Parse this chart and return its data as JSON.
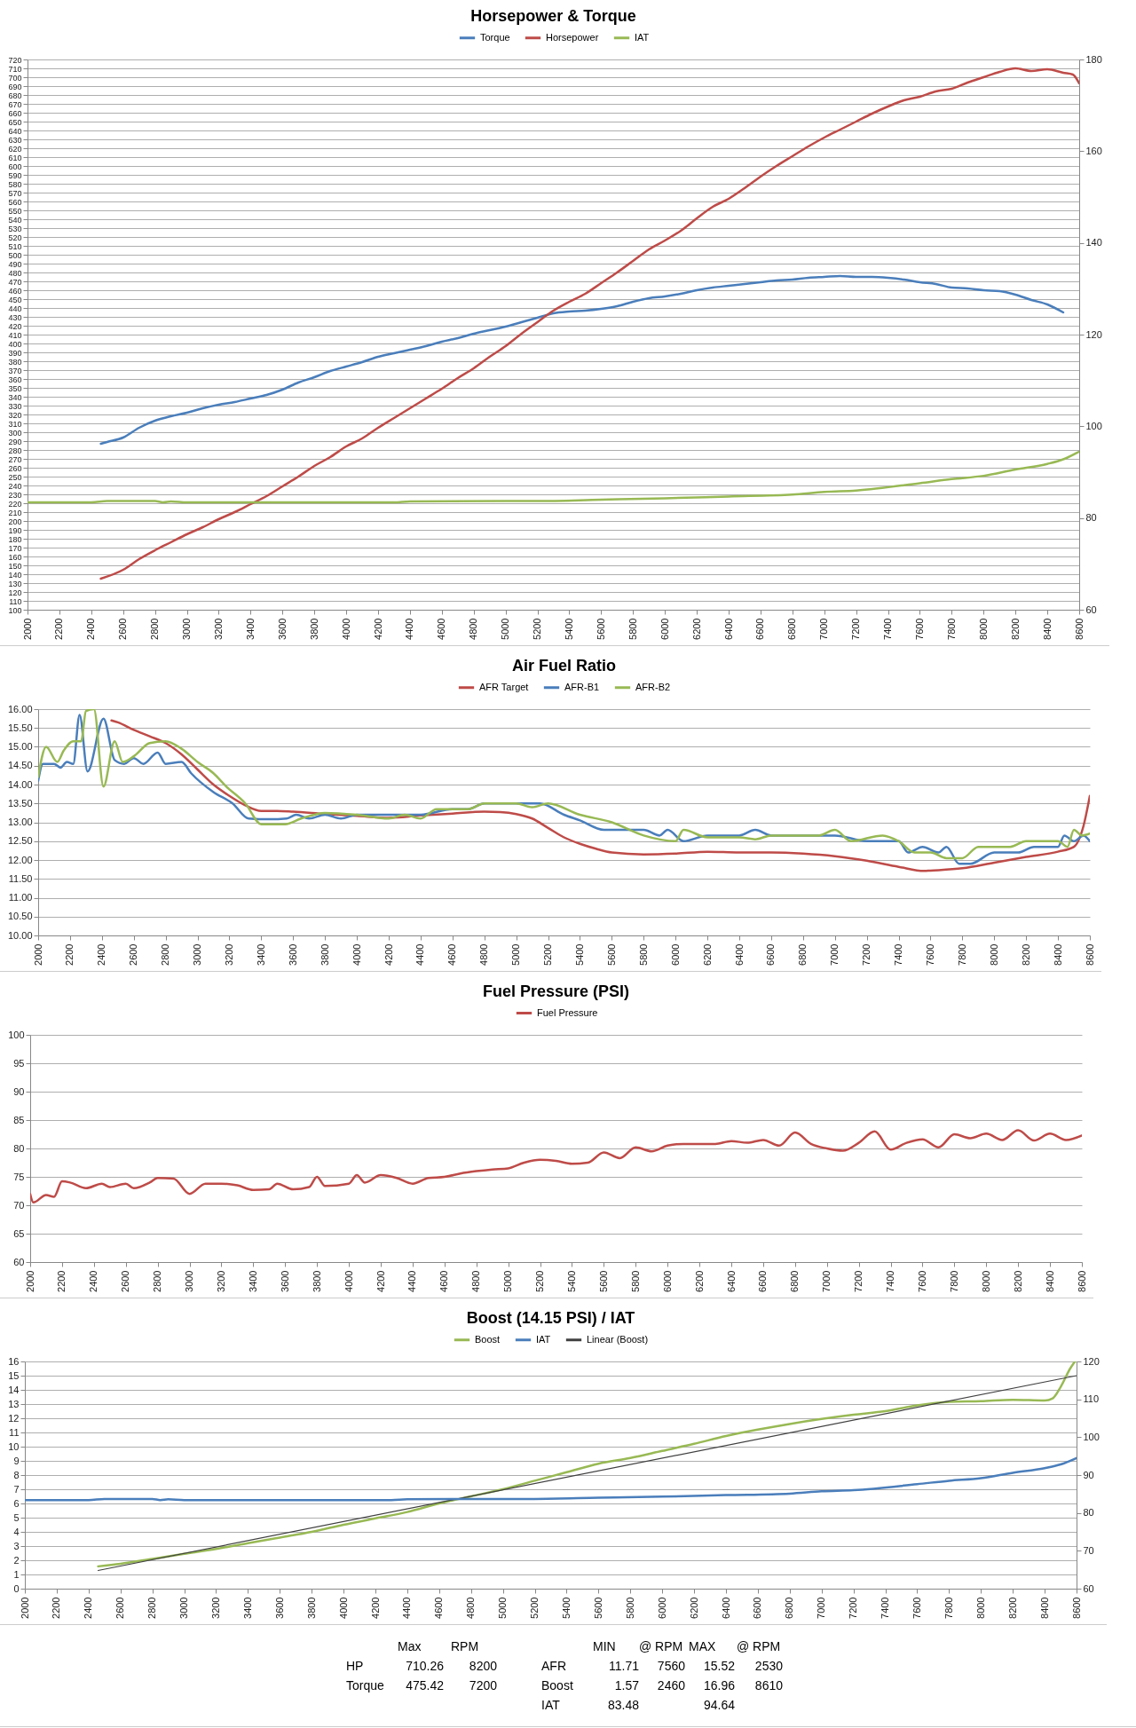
{
  "chart_data": [
    {
      "type": "line",
      "title": "Horsepower & Torque",
      "legend": "top",
      "grid": "y",
      "xlim": [
        2000,
        8600
      ],
      "xticks": [
        2000,
        2200,
        2400,
        2600,
        2800,
        3000,
        3200,
        3400,
        3600,
        3800,
        4000,
        4200,
        4400,
        4600,
        4800,
        5000,
        5200,
        5400,
        5600,
        5800,
        6000,
        6200,
        6400,
        6600,
        6800,
        7000,
        7200,
        7400,
        7600,
        7800,
        8000,
        8200,
        8400,
        8600
      ],
      "ylim": [
        100,
        720
      ],
      "yticks": [
        100,
        110,
        120,
        130,
        140,
        150,
        160,
        170,
        180,
        190,
        200,
        210,
        220,
        230,
        240,
        250,
        260,
        270,
        280,
        290,
        300,
        310,
        320,
        330,
        340,
        350,
        360,
        370,
        380,
        390,
        400,
        410,
        420,
        430,
        440,
        450,
        460,
        470,
        480,
        490,
        500,
        510,
        520,
        530,
        540,
        550,
        560,
        570,
        580,
        590,
        600,
        610,
        620,
        630,
        640,
        650,
        660,
        670,
        680,
        690,
        700,
        710,
        720
      ],
      "y2lim": [
        60,
        180
      ],
      "y2ticks": [
        60,
        80,
        100,
        120,
        140,
        160,
        180
      ],
      "series": [
        {
          "name": "Torque",
          "color": "#4a7ebb",
          "x": [
            2460,
            2500,
            2600,
            2700,
            2800,
            2900,
            3000,
            3100,
            3200,
            3300,
            3400,
            3500,
            3600,
            3700,
            3800,
            3900,
            4000,
            4100,
            4200,
            4300,
            4400,
            4500,
            4600,
            4700,
            4800,
            4900,
            5000,
            5100,
            5200,
            5300,
            5400,
            5500,
            5600,
            5700,
            5800,
            5900,
            6000,
            6100,
            6200,
            6300,
            6400,
            6500,
            6600,
            6700,
            6800,
            6900,
            7000,
            7100,
            7200,
            7300,
            7400,
            7500,
            7600,
            7700,
            7800,
            7900,
            8000,
            8100,
            8200,
            8300,
            8400,
            8500
          ],
          "values": [
            287,
            289,
            294,
            305,
            313,
            318,
            322,
            327,
            331,
            334,
            338,
            342,
            348,
            356,
            362,
            369,
            374,
            379,
            385,
            389,
            393,
            397,
            402,
            406,
            411,
            415,
            419,
            424,
            429,
            434,
            436,
            437,
            439,
            442,
            447,
            451,
            453,
            456,
            460,
            463,
            465,
            467,
            469,
            471,
            472,
            474,
            475,
            476,
            475,
            475,
            474,
            472,
            469,
            467,
            463,
            462,
            460,
            459,
            455,
            449,
            444,
            435
          ]
        },
        {
          "name": "Horsepower",
          "color": "#be4b48",
          "x": [
            2460,
            2600,
            2700,
            2800,
            2900,
            3000,
            3100,
            3200,
            3300,
            3400,
            3500,
            3600,
            3700,
            3800,
            3900,
            4000,
            4100,
            4200,
            4300,
            4400,
            4500,
            4600,
            4700,
            4800,
            4900,
            5000,
            5100,
            5200,
            5300,
            5400,
            5500,
            5600,
            5700,
            5800,
            5900,
            6000,
            6100,
            6200,
            6300,
            6400,
            6500,
            6600,
            6700,
            6800,
            6900,
            7000,
            7100,
            7200,
            7300,
            7400,
            7500,
            7600,
            7700,
            7800,
            7900,
            8000,
            8100,
            8200,
            8300,
            8400,
            8500,
            8560,
            8600
          ],
          "values": [
            135,
            145,
            157,
            167,
            176,
            185,
            193,
            202,
            210,
            219,
            228,
            239,
            250,
            262,
            272,
            284,
            293,
            305,
            316,
            327,
            338,
            349,
            361,
            372,
            385,
            397,
            411,
            424,
            437,
            447,
            456,
            468,
            480,
            493,
            506,
            516,
            527,
            541,
            554,
            563,
            575,
            588,
            600,
            611,
            622,
            632,
            641,
            650,
            659,
            667,
            674,
            678,
            684,
            687,
            694,
            700,
            706,
            710,
            707,
            709,
            705,
            703,
            693
          ]
        },
        {
          "name": "IAT",
          "color": "#98b954",
          "axis": "y2",
          "x": [
            2000,
            2400,
            2500,
            2800,
            2850,
            2900,
            3000,
            4300,
            4400,
            5000,
            5200,
            5600,
            6000,
            6400,
            6800,
            7000,
            7200,
            7600,
            7800,
            8000,
            8200,
            8400,
            8500,
            8600
          ],
          "values": [
            83.4,
            83.4,
            83.7,
            83.7,
            83.4,
            83.6,
            83.4,
            83.4,
            83.6,
            83.7,
            83.7,
            84.0,
            84.3,
            84.7,
            85.1,
            85.7,
            86.0,
            87.6,
            88.5,
            89.2,
            90.6,
            91.8,
            92.8,
            94.5
          ]
        }
      ]
    },
    {
      "type": "line",
      "title": "Air Fuel Ratio",
      "legend": "top",
      "grid": "y",
      "xlim": [
        2000,
        8600
      ],
      "xticks": [
        2000,
        2200,
        2400,
        2600,
        2800,
        3000,
        3200,
        3400,
        3600,
        3800,
        4000,
        4200,
        4400,
        4600,
        4800,
        5000,
        5200,
        5400,
        5600,
        5800,
        6000,
        6200,
        6400,
        6600,
        6800,
        7000,
        7200,
        7400,
        7600,
        7800,
        8000,
        8200,
        8400,
        8600
      ],
      "ylim": [
        10,
        16
      ],
      "yticks": [
        {
          "value": 10,
          "label": "10.00"
        },
        {
          "value": 10.5,
          "label": "10.50"
        },
        {
          "value": 11,
          "label": "11.00"
        },
        {
          "value": 11.5,
          "label": "11.50"
        },
        {
          "value": 12,
          "label": "12.00"
        },
        {
          "value": 12.5,
          "label": "12.50"
        },
        {
          "value": 13,
          "label": "13.00"
        },
        {
          "value": 13.5,
          "label": "13.50"
        },
        {
          "value": 14,
          "label": "14.00"
        },
        {
          "value": 14.5,
          "label": "14.50"
        },
        {
          "value": 15,
          "label": "15.00"
        },
        {
          "value": 15.5,
          "label": "15.50"
        },
        {
          "value": 16,
          "label": "16.00"
        }
      ],
      "series": [
        {
          "name": "AFR Target",
          "color": "#be4b48",
          "x": [
            2460,
            2500,
            2600,
            2700,
            2800,
            2900,
            3000,
            3100,
            3200,
            3300,
            3400,
            3500,
            3600,
            3800,
            4000,
            4200,
            4400,
            4600,
            4800,
            4900,
            5000,
            5100,
            5200,
            5300,
            5400,
            5500,
            5600,
            5800,
            6000,
            6200,
            6400,
            6600,
            6800,
            7000,
            7200,
            7400,
            7560,
            7600,
            7800,
            8000,
            8200,
            8400,
            8500,
            8560,
            8600
          ],
          "values": [
            15.7,
            15.65,
            15.45,
            15.28,
            15.1,
            14.8,
            14.4,
            14.0,
            13.7,
            13.45,
            13.3,
            13.3,
            13.28,
            13.22,
            13.17,
            13.12,
            13.18,
            13.23,
            13.28,
            13.27,
            13.22,
            13.1,
            12.85,
            12.6,
            12.43,
            12.3,
            12.2,
            12.15,
            12.17,
            12.22,
            12.2,
            12.2,
            12.17,
            12.1,
            11.98,
            11.82,
            11.71,
            11.72,
            11.78,
            11.93,
            12.08,
            12.22,
            12.35,
            12.9,
            13.7
          ]
        },
        {
          "name": "AFR-B1",
          "color": "#4a7ebb",
          "x": [
            2000,
            2030,
            2100,
            2140,
            2180,
            2220,
            2260,
            2310,
            2410,
            2480,
            2540,
            2600,
            2660,
            2750,
            2800,
            2900,
            2960,
            3100,
            3220,
            3320,
            3450,
            3560,
            3620,
            3700,
            3800,
            3900,
            4000,
            4400,
            4600,
            4700,
            4800,
            5000,
            5150,
            5300,
            5400,
            5550,
            5800,
            5900,
            5950,
            6050,
            6200,
            6400,
            6500,
            6600,
            7000,
            7200,
            7400,
            7460,
            7550,
            7650,
            7700,
            7780,
            7850,
            8000,
            8150,
            8250,
            8400,
            8440,
            8500,
            8560,
            8600
          ],
          "values": [
            14.1,
            14.55,
            14.55,
            14.45,
            14.6,
            14.55,
            15.85,
            14.35,
            15.75,
            14.65,
            14.55,
            14.7,
            14.55,
            14.85,
            14.55,
            14.6,
            14.3,
            13.8,
            13.5,
            13.1,
            13.08,
            13.1,
            13.2,
            13.1,
            13.2,
            13.1,
            13.2,
            13.2,
            13.35,
            13.35,
            13.5,
            13.5,
            13.5,
            13.2,
            13.05,
            12.8,
            12.8,
            12.65,
            12.8,
            12.5,
            12.65,
            12.65,
            12.8,
            12.65,
            12.65,
            12.5,
            12.5,
            12.2,
            12.35,
            12.2,
            12.35,
            11.9,
            11.9,
            12.2,
            12.2,
            12.35,
            12.35,
            12.65,
            12.5,
            12.65,
            12.5
          ]
        },
        {
          "name": "AFR-B2",
          "color": "#98b954",
          "x": [
            2000,
            2050,
            2120,
            2160,
            2220,
            2270,
            2300,
            2350,
            2410,
            2480,
            2530,
            2600,
            2700,
            2800,
            2900,
            3000,
            3100,
            3180,
            3300,
            3400,
            3550,
            3650,
            3800,
            4000,
            4200,
            4300,
            4400,
            4500,
            4700,
            4800,
            5000,
            5100,
            5200,
            5400,
            5600,
            5800,
            6000,
            6050,
            6200,
            6400,
            6500,
            6600,
            6900,
            7000,
            7100,
            7300,
            7400,
            7500,
            7600,
            7700,
            7800,
            7900,
            8100,
            8200,
            8400,
            8460,
            8500,
            8550,
            8600
          ],
          "values": [
            14.2,
            15.0,
            14.6,
            14.9,
            15.15,
            15.15,
            15.95,
            16.0,
            13.95,
            15.15,
            14.6,
            14.75,
            15.1,
            15.15,
            14.95,
            14.6,
            14.3,
            13.95,
            13.5,
            12.95,
            12.95,
            13.1,
            13.25,
            13.2,
            13.1,
            13.2,
            13.1,
            13.35,
            13.35,
            13.5,
            13.5,
            13.4,
            13.5,
            13.2,
            13.0,
            12.65,
            12.5,
            12.8,
            12.6,
            12.6,
            12.55,
            12.65,
            12.65,
            12.8,
            12.5,
            12.65,
            12.5,
            12.2,
            12.2,
            12.05,
            12.05,
            12.35,
            12.35,
            12.5,
            12.5,
            12.35,
            12.8,
            12.65,
            12.7
          ]
        }
      ]
    },
    {
      "type": "line",
      "title": "Fuel Pressure (PSI)",
      "legend": "top",
      "grid": "y",
      "xlim": [
        2000,
        8600
      ],
      "xticks": [
        2000,
        2200,
        2400,
        2600,
        2800,
        3000,
        3200,
        3400,
        3600,
        3800,
        4000,
        4200,
        4400,
        4600,
        4800,
        5000,
        5200,
        5400,
        5600,
        5800,
        6000,
        6200,
        6400,
        6600,
        6800,
        7000,
        7200,
        7400,
        7600,
        7800,
        8000,
        8200,
        8400,
        8600
      ],
      "ylim": [
        60,
        100
      ],
      "yticks": [
        60,
        65,
        70,
        75,
        80,
        85,
        90,
        95,
        100
      ],
      "series": [
        {
          "name": "Fuel Pressure",
          "color": "#be4b48",
          "x": [
            2000,
            2020,
            2100,
            2150,
            2200,
            2250,
            2350,
            2450,
            2500,
            2600,
            2650,
            2750,
            2800,
            2900,
            3000,
            3100,
            3200,
            3300,
            3400,
            3500,
            3550,
            3650,
            3750,
            3800,
            3850,
            4000,
            4050,
            4100,
            4200,
            4300,
            4400,
            4500,
            4600,
            4700,
            4800,
            4900,
            5000,
            5100,
            5200,
            5300,
            5400,
            5500,
            5600,
            5700,
            5800,
            5900,
            6000,
            6100,
            6300,
            6400,
            6500,
            6600,
            6700,
            6800,
            6900,
            7000,
            7100,
            7200,
            7300,
            7400,
            7500,
            7600,
            7700,
            7800,
            7900,
            8000,
            8100,
            8200,
            8300,
            8400,
            8500,
            8600
          ],
          "values": [
            72,
            70.5,
            71.8,
            71.5,
            74.2,
            74,
            73,
            73.8,
            73.2,
            73.8,
            73,
            74,
            74.8,
            74.7,
            72,
            73.8,
            73.8,
            73.5,
            72.7,
            72.8,
            73.8,
            72.8,
            73.2,
            75,
            73.4,
            73.8,
            75.3,
            74,
            75.3,
            74.8,
            73.8,
            74.8,
            75,
            75.6,
            76,
            76.3,
            76.5,
            77.5,
            78,
            77.8,
            77.3,
            77.5,
            79.3,
            78.3,
            80.2,
            79.5,
            80.5,
            80.8,
            80.8,
            81.3,
            81,
            81.5,
            80.5,
            82.8,
            80.8,
            80,
            79.6,
            81,
            83,
            79.8,
            81,
            81.6,
            80.2,
            82.5,
            81.8,
            82.6,
            81.5,
            83.2,
            81.4,
            82.6,
            81.5,
            82.3
          ]
        }
      ]
    },
    {
      "type": "line",
      "title": "Boost (14.15 PSI) / IAT",
      "legend": "top",
      "grid": "y",
      "xlim": [
        2000,
        8600
      ],
      "xticks": [
        2000,
        2200,
        2400,
        2600,
        2800,
        3000,
        3200,
        3400,
        3600,
        3800,
        4000,
        4200,
        4400,
        4600,
        4800,
        5000,
        5200,
        5400,
        5600,
        5800,
        6000,
        6200,
        6400,
        6600,
        6800,
        7000,
        7200,
        7400,
        7600,
        7800,
        8000,
        8200,
        8400,
        8600
      ],
      "ylim": [
        0,
        16
      ],
      "yticks": [
        0,
        1,
        2,
        3,
        4,
        5,
        6,
        7,
        8,
        9,
        10,
        11,
        12,
        13,
        14,
        15,
        16
      ],
      "y2lim": [
        60,
        120
      ],
      "y2ticks": [
        60,
        70,
        80,
        90,
        100,
        110,
        120
      ],
      "series": [
        {
          "name": "Boost",
          "color": "#98b954",
          "x": [
            2460,
            2600,
            2800,
            3000,
            3200,
            3400,
            3600,
            3800,
            4000,
            4200,
            4400,
            4600,
            4800,
            5000,
            5200,
            5400,
            5600,
            5800,
            6000,
            6200,
            6400,
            6600,
            6800,
            7000,
            7200,
            7400,
            7600,
            7800,
            8000,
            8200,
            8400,
            8450,
            8500,
            8560,
            8590
          ],
          "values": [
            1.57,
            1.75,
            2.1,
            2.45,
            2.8,
            3.2,
            3.6,
            4.0,
            4.5,
            4.95,
            5.4,
            6.0,
            6.5,
            7.0,
            7.6,
            8.2,
            8.8,
            9.2,
            9.7,
            10.2,
            10.75,
            11.2,
            11.6,
            11.95,
            12.25,
            12.5,
            12.9,
            13.15,
            13.2,
            13.3,
            13.25,
            13.4,
            14.2,
            15.5,
            16
          ]
        },
        {
          "name": "IAT",
          "color": "#4a7ebb",
          "axis": "y2",
          "x": [
            2000,
            2400,
            2500,
            2800,
            2850,
            2900,
            3000,
            4300,
            4400,
            5000,
            5200,
            5600,
            6000,
            6400,
            6800,
            7000,
            7200,
            7600,
            7800,
            8000,
            8200,
            8400,
            8500,
            8600
          ],
          "values": [
            83.4,
            83.4,
            83.7,
            83.7,
            83.4,
            83.6,
            83.4,
            83.4,
            83.6,
            83.7,
            83.7,
            84.0,
            84.3,
            84.7,
            85.1,
            85.7,
            86.0,
            87.6,
            88.5,
            89.2,
            90.6,
            91.8,
            92.8,
            94.5
          ]
        },
        {
          "name": "Linear (Boost)",
          "color": "#404040",
          "type": "line",
          "x": [
            2460,
            8600
          ],
          "values": [
            1.28,
            15.0
          ]
        }
      ]
    },
    {
      "type": "other",
      "annotations": [
        "Max",
        "RPM",
        "MIN",
        "@ RPM",
        "MAX",
        "@ RPM",
        "HP",
        "710.26",
        "8200",
        "AFR",
        "11.71",
        "7560",
        "15.52",
        "2530",
        "Torque",
        "475.42",
        "7200",
        "Boost",
        "1.57",
        "2460",
        "16.96",
        "8610",
        "IAT",
        "83.48",
        "94.64"
      ]
    }
  ]
}
